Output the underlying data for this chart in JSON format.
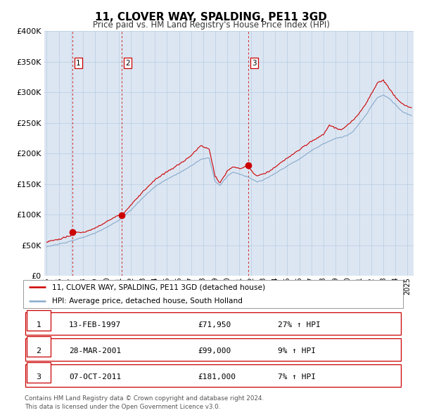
{
  "title": "11, CLOVER WAY, SPALDING, PE11 3GD",
  "subtitle": "Price paid vs. HM Land Registry's House Price Index (HPI)",
  "bg_color": "#dce6f2",
  "red_color": "#cc0000",
  "blue_color": "#88aacc",
  "grid_color": "#b8cce0",
  "sale_points": [
    {
      "x": 1997.12,
      "price": 71950,
      "label": "1"
    },
    {
      "x": 2001.24,
      "price": 99000,
      "label": "2"
    },
    {
      "x": 2011.77,
      "price": 181000,
      "label": "3"
    }
  ],
  "legend_entries": [
    {
      "label": "11, CLOVER WAY, SPALDING, PE11 3GD (detached house)",
      "color": "#cc0000"
    },
    {
      "label": "HPI: Average price, detached house, South Holland",
      "color": "#88aacc"
    }
  ],
  "table_rows": [
    {
      "num": "1",
      "date": "13-FEB-1997",
      "price": "£71,950",
      "hpi": "27% ↑ HPI"
    },
    {
      "num": "2",
      "date": "28-MAR-2001",
      "price": "£99,000",
      "hpi": "9% ↑ HPI"
    },
    {
      "num": "3",
      "date": "07-OCT-2011",
      "price": "£181,000",
      "hpi": "7% ↑ HPI"
    }
  ],
  "footer": "Contains HM Land Registry data © Crown copyright and database right 2024.\nThis data is licensed under the Open Government Licence v3.0.",
  "ylim": [
    0,
    400000
  ],
  "yticks": [
    0,
    50000,
    100000,
    150000,
    200000,
    250000,
    300000,
    350000,
    400000
  ],
  "xstart": 1994.8,
  "xend": 2025.5,
  "xticks": [
    1995,
    1996,
    1997,
    1998,
    1999,
    2000,
    2001,
    2002,
    2003,
    2004,
    2005,
    2006,
    2007,
    2008,
    2009,
    2010,
    2011,
    2012,
    2013,
    2014,
    2015,
    2016,
    2017,
    2018,
    2019,
    2020,
    2021,
    2022,
    2023,
    2024,
    2025
  ]
}
